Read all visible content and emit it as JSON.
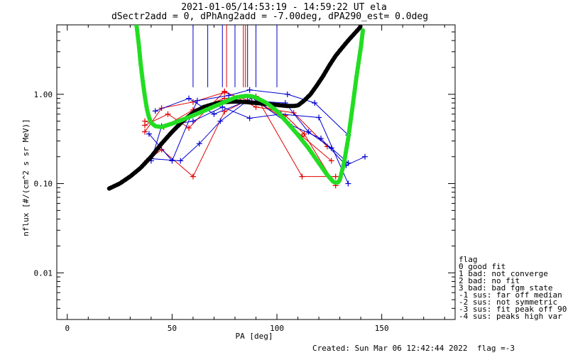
{
  "header": {
    "title_line1": "2021-01-05/14:53:19 - 14:59:22 UT ela",
    "title_line2": "dSectr2add = 0, dPhAng2add = -7.00deg, dPA290_est=   0.0deg"
  },
  "footer": {
    "created": "Created: Sun Mar 06 12:42:44 2022",
    "flag": "flag =-3"
  },
  "legend": {
    "title": "flag",
    "entries": [
      " 0 good fit",
      " 1 bad: not converge",
      " 2 bad: no fit",
      " 3 bad: bad fgm state",
      "-1 sus: far off median",
      "-2 sus: not symmetric",
      "-3 sus: fit peak off 90",
      "-4 sus: peaks high var"
    ]
  },
  "chart_data": {
    "type": "line",
    "title": "2021-01-05/14:53:19 - 14:59:22 UT ela",
    "subtitle": "dSectr2add = 0, dPhAng2add = -7.00deg, dPA290_est=   0.0deg",
    "xlabel": "PA [deg]",
    "ylabel": "nflux [#/(cm^2 s sr MeV)]",
    "xlim": [
      -5,
      185
    ],
    "ylim": [
      0.003,
      6.0
    ],
    "yscale": "log",
    "xticks": [
      0,
      50,
      100,
      150
    ],
    "yticks": [
      0.01,
      0.1,
      1.0
    ],
    "ytick_labels": [
      "0.01",
      "0.10",
      "1.00"
    ],
    "colors": {
      "red": "#e00000",
      "blue": "#0000d0",
      "black": "#000000",
      "green": "#22dd22"
    },
    "vertical_lines": [
      {
        "x": 60,
        "color": "blue"
      },
      {
        "x": 67,
        "color": "blue"
      },
      {
        "x": 74,
        "color": "blue"
      },
      {
        "x": 80,
        "color": "blue"
      },
      {
        "x": 86,
        "color": "blue"
      },
      {
        "x": 90,
        "color": "blue"
      },
      {
        "x": 100,
        "color": "blue"
      },
      {
        "x": 76,
        "color": "red"
      },
      {
        "x": 84,
        "color": "red"
      },
      {
        "x": 85,
        "color": "red"
      }
    ],
    "series": [
      {
        "color": "red",
        "points": [
          [
            37,
            0.38
          ],
          [
            45,
            0.7
          ],
          [
            60,
            0.82
          ],
          [
            75,
            1.05
          ],
          [
            90,
            0.8
          ],
          [
            104,
            0.58
          ],
          [
            113,
            0.36
          ],
          [
            128,
            0.095
          ]
        ]
      },
      {
        "color": "red",
        "points": [
          [
            38,
            0.18
          ],
          [
            45,
            0.24
          ],
          [
            60,
            0.12
          ],
          [
            75,
            0.64
          ],
          [
            90,
            0.95
          ],
          [
            112,
            0.12
          ],
          [
            128,
            0.12
          ]
        ]
      },
      {
        "color": "red",
        "points": [
          [
            37,
            0.5
          ],
          [
            46,
            0.43
          ],
          [
            60,
            0.67
          ],
          [
            75,
            0.9
          ],
          [
            88,
            0.92
          ],
          [
            103,
            0.54
          ],
          [
            112,
            0.34
          ],
          [
            126,
            0.18
          ]
        ]
      },
      {
        "color": "red",
        "points": [
          [
            37,
            0.45
          ],
          [
            48,
            0.6
          ],
          [
            58,
            0.42
          ],
          [
            75,
            1.08
          ],
          [
            90,
            0.72
          ],
          [
            108,
            0.62
          ],
          [
            124,
            0.26
          ]
        ]
      },
      {
        "color": "blue",
        "points": [
          [
            40,
            0.18
          ],
          [
            45,
            0.44
          ],
          [
            60,
            0.5
          ],
          [
            74,
            0.72
          ],
          [
            87,
            0.54
          ],
          [
            102,
            0.6
          ],
          [
            120,
            0.55
          ],
          [
            134,
            0.1
          ]
        ]
      },
      {
        "color": "blue",
        "points": [
          [
            39,
            0.36
          ],
          [
            50,
            0.18
          ],
          [
            62,
            0.85
          ],
          [
            77,
            0.97
          ],
          [
            87,
            1.12
          ],
          [
            105,
            1.0
          ],
          [
            118,
            0.8
          ],
          [
            134,
            0.35
          ]
        ]
      },
      {
        "color": "blue",
        "points": [
          [
            40,
            0.19
          ],
          [
            54,
            0.18
          ],
          [
            63,
            0.28
          ],
          [
            73,
            0.5
          ],
          [
            88,
            0.92
          ],
          [
            106,
            0.46
          ],
          [
            121,
            0.32
          ],
          [
            133,
            0.16
          ],
          [
            142,
            0.2
          ]
        ]
      },
      {
        "color": "blue",
        "points": [
          [
            42,
            0.65
          ],
          [
            58,
            0.9
          ],
          [
            70,
            0.6
          ],
          [
            86,
            0.85
          ],
          [
            104,
            0.8
          ],
          [
            115,
            0.38
          ],
          [
            126,
            0.25
          ],
          [
            134,
            0.17
          ]
        ]
      }
    ],
    "fit_black": {
      "color": "black",
      "x": [
        20,
        25,
        30,
        35,
        40,
        45,
        50,
        55,
        60,
        65,
        70,
        75,
        80,
        85,
        90,
        95,
        100,
        105,
        108,
        110,
        113,
        116,
        119,
        122,
        125,
        128,
        131,
        134,
        137,
        139,
        140
      ],
      "y": [
        0.088,
        0.1,
        0.12,
        0.15,
        0.2,
        0.28,
        0.38,
        0.5,
        0.62,
        0.72,
        0.78,
        0.82,
        0.83,
        0.82,
        0.8,
        0.78,
        0.76,
        0.74,
        0.74,
        0.75,
        0.85,
        1.0,
        1.25,
        1.6,
        2.1,
        2.7,
        3.3,
        4.0,
        4.8,
        5.4,
        5.8
      ]
    },
    "fit_green": {
      "color": "green",
      "x": [
        33,
        34,
        35,
        36,
        37,
        38,
        39,
        40,
        42,
        45,
        50,
        55,
        60,
        65,
        70,
        75,
        80,
        85,
        88,
        90,
        95,
        100,
        105,
        110,
        115,
        120,
        124,
        127,
        129,
        130,
        132,
        134,
        136,
        138,
        140,
        141
      ],
      "y": [
        6.0,
        3.8,
        2.2,
        1.4,
        0.95,
        0.68,
        0.55,
        0.48,
        0.44,
        0.43,
        0.47,
        0.52,
        0.58,
        0.65,
        0.73,
        0.82,
        0.92,
        0.96,
        0.95,
        0.92,
        0.8,
        0.65,
        0.48,
        0.35,
        0.25,
        0.17,
        0.125,
        0.104,
        0.102,
        0.11,
        0.17,
        0.32,
        0.7,
        1.6,
        3.3,
        5.2
      ]
    }
  }
}
